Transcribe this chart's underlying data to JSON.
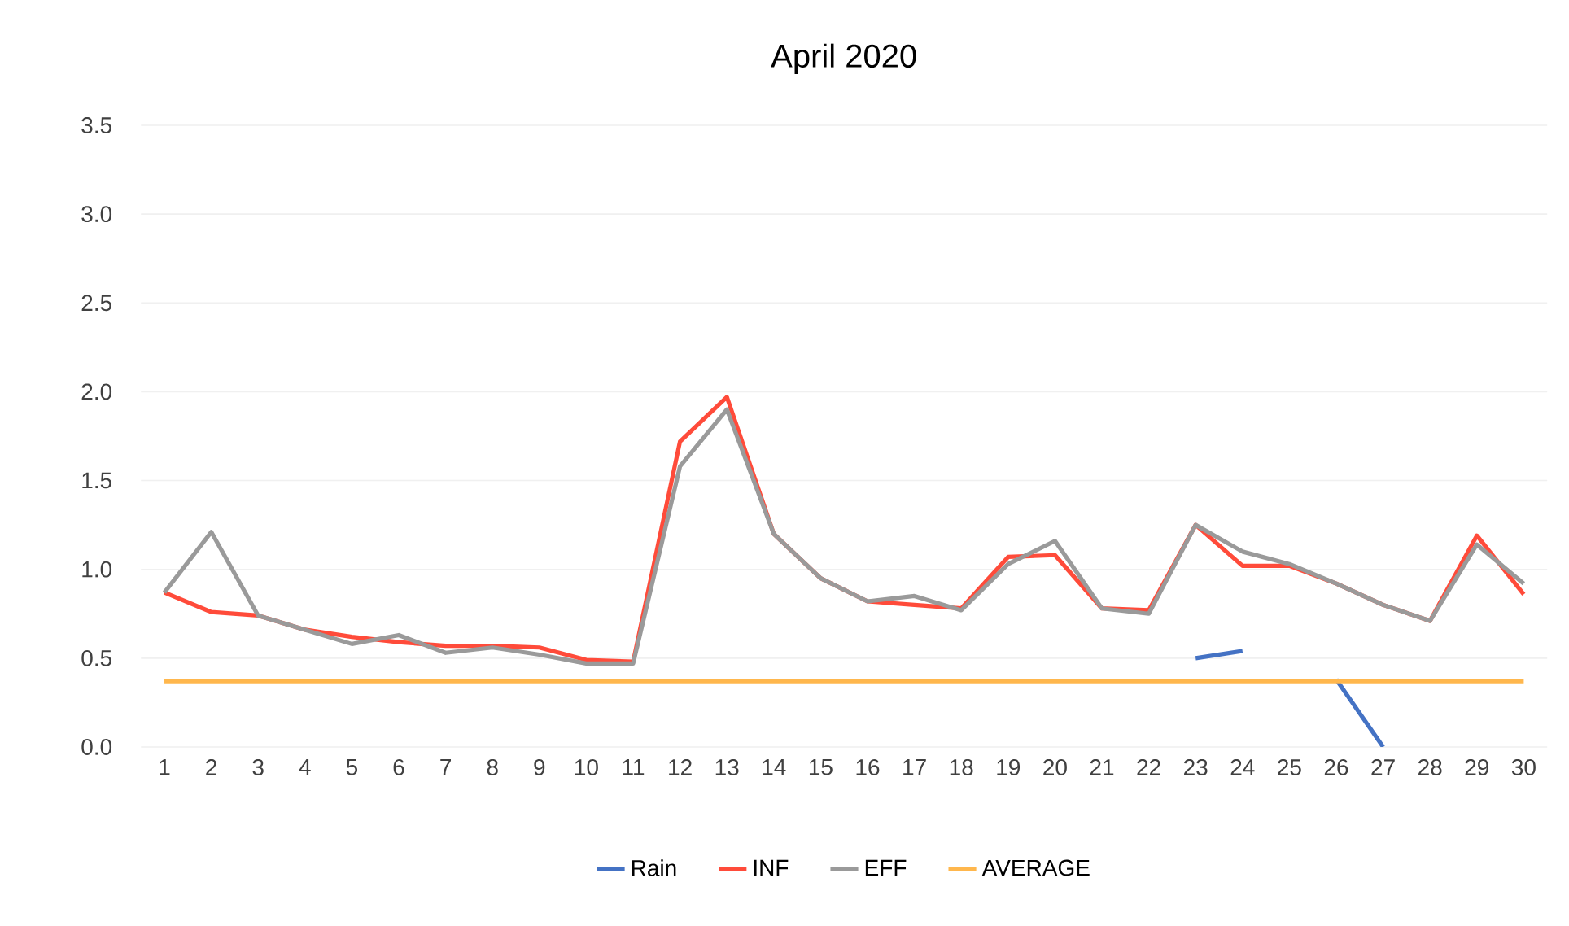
{
  "chart_data": {
    "type": "line",
    "title": "April 2020",
    "categories": [
      "1",
      "2",
      "3",
      "4",
      "5",
      "6",
      "7",
      "8",
      "9",
      "10",
      "11",
      "12",
      "13",
      "14",
      "15",
      "16",
      "17",
      "18",
      "19",
      "20",
      "21",
      "22",
      "23",
      "24",
      "25",
      "26",
      "27",
      "28",
      "29",
      "30"
    ],
    "series": [
      {
        "name": "Rain",
        "color": "#4472c4",
        "values": [
          null,
          null,
          null,
          null,
          null,
          null,
          null,
          null,
          null,
          null,
          null,
          null,
          null,
          null,
          null,
          null,
          null,
          null,
          null,
          null,
          null,
          null,
          0.5,
          0.54,
          null,
          0.38,
          0.0,
          null,
          null,
          null
        ]
      },
      {
        "name": "INF",
        "color": "#ff4b3a",
        "values": [
          0.87,
          0.76,
          0.74,
          0.66,
          0.62,
          0.59,
          0.57,
          0.57,
          0.56,
          0.49,
          0.48,
          1.72,
          1.97,
          1.2,
          0.95,
          0.82,
          0.8,
          0.78,
          1.07,
          1.08,
          0.78,
          0.77,
          1.25,
          1.02,
          1.02,
          0.92,
          0.8,
          0.71,
          1.19,
          0.86
        ]
      },
      {
        "name": "EFF",
        "color": "#9a9a9a",
        "values": [
          0.87,
          1.21,
          0.74,
          0.66,
          0.58,
          0.63,
          0.53,
          0.56,
          0.52,
          0.47,
          0.47,
          1.58,
          1.9,
          1.2,
          0.95,
          0.82,
          0.85,
          0.77,
          1.03,
          1.16,
          0.78,
          0.75,
          1.25,
          1.1,
          1.03,
          0.92,
          0.8,
          0.71,
          1.14,
          0.92
        ]
      },
      {
        "name": "AVERAGE",
        "color": "#ffb74d",
        "values": [
          0.37,
          0.37,
          0.37,
          0.37,
          0.37,
          0.37,
          0.37,
          0.37,
          0.37,
          0.37,
          0.37,
          0.37,
          0.37,
          0.37,
          0.37,
          0.37,
          0.37,
          0.37,
          0.37,
          0.37,
          0.37,
          0.37,
          0.37,
          0.37,
          0.37,
          0.37,
          0.37,
          0.37,
          0.37,
          0.37
        ]
      }
    ],
    "ylim": [
      0,
      3.5
    ],
    "yticks": [
      {
        "value": 0,
        "label": "0.0"
      },
      0.5,
      {
        "value": 1,
        "label": "1.0"
      },
      1.5,
      {
        "value": 2,
        "label": "2.0"
      },
      2.5,
      {
        "value": 3,
        "label": "3.0"
      },
      3.5
    ],
    "grid": "y",
    "legend": "bottom",
    "marker": "none",
    "line_style": "solid"
  }
}
